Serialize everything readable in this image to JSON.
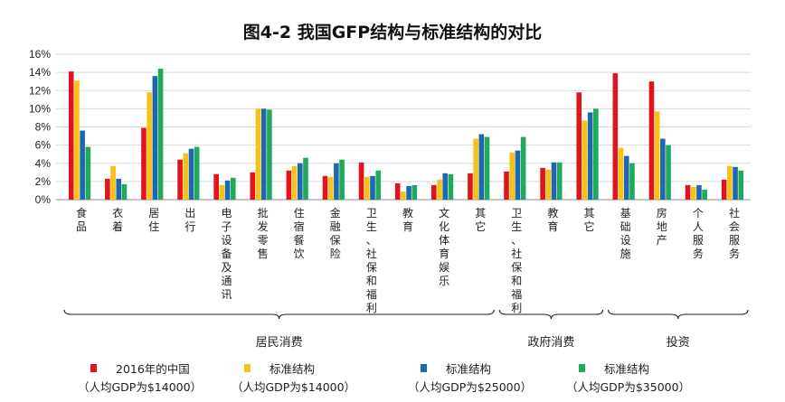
{
  "chart_data": {
    "type": "bar",
    "title": "图4-2 我国GFP结构与标准结构的对比",
    "xlabel": "",
    "ylabel": "",
    "ylim": [
      0,
      16
    ],
    "yticks": [
      "0%",
      "2%",
      "4%",
      "6%",
      "8%",
      "10%",
      "12%",
      "14%",
      "16%"
    ],
    "grid": true,
    "categories": [
      "食品",
      "衣着",
      "居住",
      "出行",
      "电子设备及通讯",
      "批发零售",
      "住宿餐饮",
      "金融保险",
      "卫生、社保和福利",
      "教育",
      "文化体育娱乐",
      "其它",
      "卫生、社保和福利",
      "教育",
      "其它",
      "基础设施",
      "房地产",
      "个人服务",
      "社会服务"
    ],
    "groups": [
      {
        "label": "居民消费",
        "from": 0,
        "to": 11
      },
      {
        "label": "政府消费",
        "from": 12,
        "to": 14
      },
      {
        "label": "投资",
        "from": 15,
        "to": 18
      }
    ],
    "series": [
      {
        "name": "2016年的中国",
        "note": "（人均GDP为$14000）",
        "color": "#e0141e",
        "values": [
          14.1,
          2.3,
          7.9,
          4.4,
          2.8,
          3.0,
          3.2,
          2.6,
          4.1,
          1.8,
          1.6,
          2.9,
          3.1,
          3.5,
          11.8,
          13.9,
          13.0,
          1.6,
          2.2
        ]
      },
      {
        "name": "标准结构",
        "note": "（人均GDP为$14000）",
        "color": "#f5c215",
        "values": [
          13.1,
          3.7,
          11.8,
          5.1,
          1.6,
          10.0,
          3.7,
          2.5,
          2.5,
          0.9,
          2.2,
          6.7,
          5.2,
          3.3,
          8.7,
          5.7,
          9.7,
          1.4,
          3.7
        ]
      },
      {
        "name": "标准结构",
        "note": "（人均GDP为$25000）",
        "color": "#1f67b1",
        "values": [
          7.6,
          2.3,
          13.6,
          5.6,
          2.1,
          10.0,
          4.0,
          4.0,
          2.6,
          1.5,
          2.9,
          7.2,
          5.4,
          4.1,
          9.6,
          4.8,
          6.7,
          1.6,
          3.6
        ]
      },
      {
        "name": "标准结构",
        "note": "（人均GDP为$35000）",
        "color": "#1eaa5a",
        "values": [
          5.8,
          1.7,
          14.4,
          5.8,
          2.4,
          9.9,
          4.6,
          4.4,
          3.2,
          1.6,
          2.8,
          6.9,
          6.9,
          4.1,
          10.0,
          4.0,
          6.0,
          1.1,
          3.2
        ]
      }
    ]
  }
}
